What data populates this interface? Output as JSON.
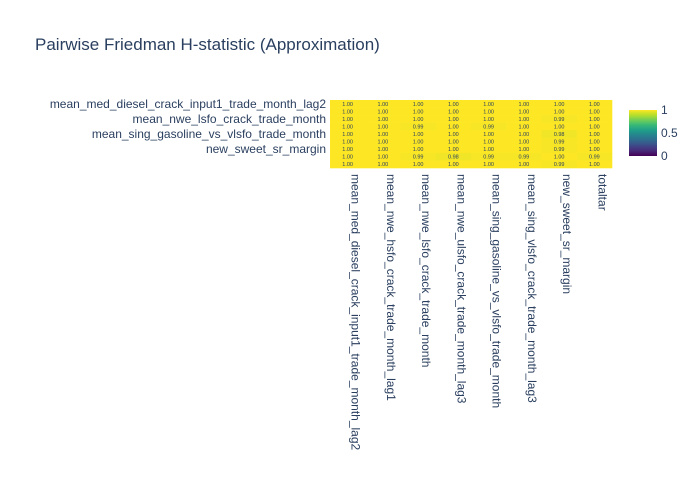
{
  "chart_data": {
    "type": "heatmap",
    "title": "Pairwise Friedman H-statistic (Approximation)",
    "x_labels": [
      "mean_med_diesel_crack_input1_trade_month_lag2",
      "mean_nwe_hsfo_crack_trade_month_lag1",
      "mean_nwe_lsfo_crack_trade_month",
      "mean_nwe_ulsfo_crack_trade_month_lag3",
      "mean_sing_gasoline_vs_vlsfo_trade_month",
      "mean_sing_vlsfo_crack_trade_month_lag3",
      "new_sweet_sr_margin",
      "totaltar"
    ],
    "y_tick_labels": [
      "mean_med_diesel_crack_input1_trade_month_lag2",
      "mean_nwe_lsfo_crack_trade_month",
      "mean_sing_gasoline_vs_vlsfo_trade_month",
      "new_sweet_sr_margin"
    ],
    "z_text": [
      [
        "1.00",
        "1.00",
        "1.00",
        "1.00",
        "1.00",
        "1.00",
        "1.00",
        "1.00"
      ],
      [
        "1.00",
        "1.00",
        "1.00",
        "1.00",
        "1.00",
        "1.00",
        "1.00",
        "1.00"
      ],
      [
        "1.00",
        "1.00",
        "1.00",
        "1.00",
        "1.00",
        "1.00",
        "0.99",
        "1.00"
      ],
      [
        "1.00",
        "1.00",
        "0.99",
        "1.00",
        "0.99",
        "1.00",
        "1.00",
        "1.00"
      ],
      [
        "1.00",
        "1.00",
        "1.00",
        "1.00",
        "1.00",
        "1.00",
        "0.98",
        "1.00"
      ],
      [
        "1.00",
        "1.00",
        "1.00",
        "1.00",
        "1.00",
        "1.00",
        "0.99",
        "1.00"
      ],
      [
        "1.00",
        "1.00",
        "1.00",
        "1.00",
        "1.00",
        "1.00",
        "0.99",
        "1.00"
      ],
      [
        "1.00",
        "1.00",
        "0.99",
        "0.98",
        "0.99",
        "0.99",
        "1.00",
        "0.99"
      ],
      [
        "1.00",
        "1.00",
        "1.00",
        "1.00",
        "1.00",
        "1.00",
        "0.99",
        "1.00"
      ]
    ],
    "z_values": [
      [
        1.0,
        1.0,
        1.0,
        1.0,
        1.0,
        1.0,
        1.0,
        1.0
      ],
      [
        1.0,
        1.0,
        1.0,
        1.0,
        1.0,
        1.0,
        1.0,
        1.0
      ],
      [
        1.0,
        1.0,
        1.0,
        1.0,
        1.0,
        1.0,
        0.99,
        1.0
      ],
      [
        1.0,
        1.0,
        0.99,
        1.0,
        0.99,
        1.0,
        1.0,
        1.0
      ],
      [
        1.0,
        1.0,
        1.0,
        1.0,
        1.0,
        1.0,
        0.98,
        1.0
      ],
      [
        1.0,
        1.0,
        1.0,
        1.0,
        1.0,
        1.0,
        0.99,
        1.0
      ],
      [
        1.0,
        1.0,
        1.0,
        1.0,
        1.0,
        1.0,
        0.99,
        1.0
      ],
      [
        1.0,
        1.0,
        0.99,
        0.98,
        0.99,
        0.99,
        1.0,
        0.99
      ],
      [
        1.0,
        1.0,
        1.0,
        1.0,
        1.0,
        1.0,
        0.99,
        1.0
      ]
    ],
    "colorscale": "Viridis",
    "zmin": 0,
    "zmax": 1,
    "colorbar_ticks": [
      "0",
      "0.5",
      "1"
    ],
    "colorbar_tickvals": [
      0,
      0.5,
      1
    ]
  }
}
